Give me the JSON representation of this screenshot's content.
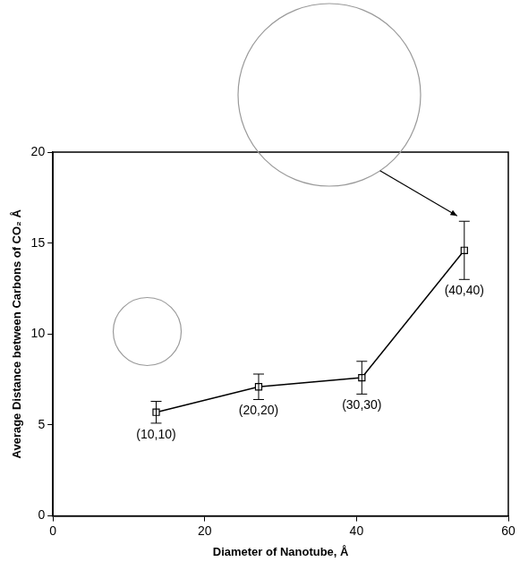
{
  "chart_data": {
    "type": "line",
    "x_label": "Diameter of Nanotube, Å",
    "y_label": "Average Distance between Carbons of CO₂ Å",
    "x": [
      13.6,
      27.1,
      40.7,
      54.2
    ],
    "values": [
      5.7,
      7.1,
      7.6,
      14.6
    ],
    "errors": [
      0.6,
      0.7,
      0.9,
      1.6
    ],
    "point_labels": [
      "(10,10)",
      "(20,20)",
      "(30,30)",
      "(40,40)"
    ],
    "color": "#000000",
    "marker": "square",
    "line_style": "solid",
    "xlim": [
      0,
      60
    ],
    "xticks": [
      0,
      20,
      40,
      60
    ],
    "ylim": [
      0,
      20
    ],
    "yticks": [
      0,
      5,
      10,
      15,
      20
    ],
    "grid": false
  }
}
